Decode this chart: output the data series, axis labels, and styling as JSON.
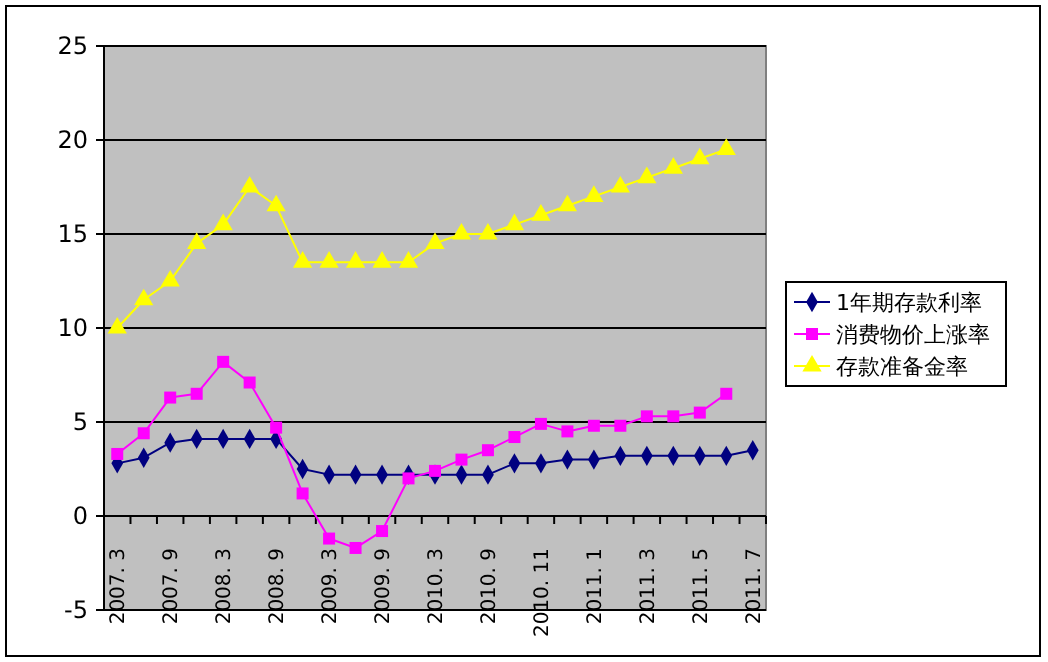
{
  "chart_data": {
    "type": "line",
    "categories": [
      "2007. 3",
      null,
      "2007. 9",
      null,
      "2008. 3",
      null,
      "2008. 9",
      null,
      "2009. 3",
      null,
      "2009. 9",
      null,
      "2010. 3",
      null,
      "2010. 9",
      null,
      "2010. 11",
      null,
      "2011. 1",
      null,
      "2011. 3",
      null,
      "2011. 5",
      null,
      "2011. 7"
    ],
    "ylim": [
      -5,
      25
    ],
    "yticks": [
      -5,
      0,
      5,
      10,
      15,
      20,
      25
    ],
    "grid": "y",
    "legend": "right",
    "series": [
      {
        "name": "1年期存款利率",
        "color": "#000080",
        "marker": "diamond",
        "values": [
          2.8,
          3.1,
          3.9,
          4.1,
          4.1,
          4.1,
          4.1,
          2.5,
          2.2,
          2.2,
          2.2,
          2.2,
          2.2,
          2.2,
          2.2,
          2.8,
          2.8,
          3,
          3,
          3.2,
          3.2,
          3.2,
          3.2,
          3.2,
          3.5
        ]
      },
      {
        "name": "消费物价上涨率",
        "color": "#ff00ff",
        "marker": "square",
        "values": [
          3.3,
          4.4,
          6.3,
          6.5,
          8.2,
          7.1,
          4.7,
          1.2,
          -1.2,
          -1.7,
          -0.8,
          2.0,
          2.4,
          3.0,
          3.5,
          4.2,
          4.9,
          4.5,
          4.8,
          4.8,
          5.3,
          5.3,
          5.5,
          6.5,
          null
        ]
      },
      {
        "name": "存款准备金率",
        "color": "#ffff00",
        "marker": "triangle",
        "values": [
          10,
          11.5,
          12.5,
          14.5,
          15.5,
          17.5,
          16.5,
          13.5,
          13.5,
          13.5,
          13.5,
          13.5,
          14.5,
          15,
          15,
          15.5,
          16,
          16.5,
          17,
          17.5,
          18,
          18.5,
          19,
          19.5,
          null
        ]
      }
    ]
  }
}
